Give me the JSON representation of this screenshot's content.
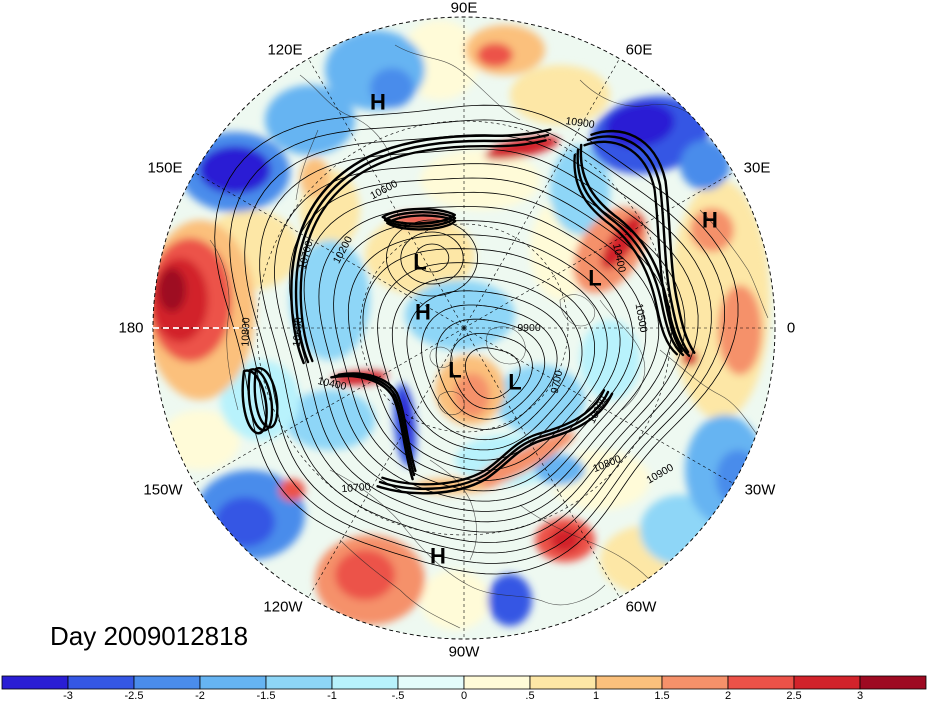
{
  "title": "Day 2009012818",
  "longitude_labels": {
    "lon_90e": "90E",
    "lon_60e": "60E",
    "lon_120e": "120E",
    "lon_30e": "30E",
    "lon_150e": "150E",
    "lon_180": "180",
    "lon_0": "0",
    "lon_150w": "150W",
    "lon_30w": "30W",
    "lon_120w": "120W",
    "lon_60w": "60W",
    "lon_90w": "90W"
  },
  "pressure_centers": [
    "H",
    "H",
    "L",
    "L",
    "H",
    "L",
    "L",
    "H"
  ],
  "contour_labels": [
    "10900",
    "10600",
    "10200",
    "10700",
    "10800",
    "10600",
    "10400",
    "10700",
    "9900",
    "9700",
    "10000",
    "10800",
    "10900",
    "10500",
    "10400"
  ],
  "colorbar": {
    "tick_labels": [
      "-3",
      "-2.5",
      "-2",
      "-1.5",
      "-1",
      "-.5",
      "0",
      ".5",
      "1",
      "1.5",
      "2",
      "2.5",
      "3"
    ],
    "colors": [
      "#2a1ed4",
      "#3557e4",
      "#4a8ceb",
      "#66b4f2",
      "#8ed6f7",
      "#b8f2fc",
      "#e4fcfb",
      "#fffbd8",
      "#fde7a6",
      "#fbc07c",
      "#f5916a",
      "#ec5248",
      "#d2232b",
      "#9e0a22"
    ]
  },
  "colors": {
    "field_base": "#eef9f1",
    "contours": "#000000",
    "dateline": "#ffffff"
  }
}
